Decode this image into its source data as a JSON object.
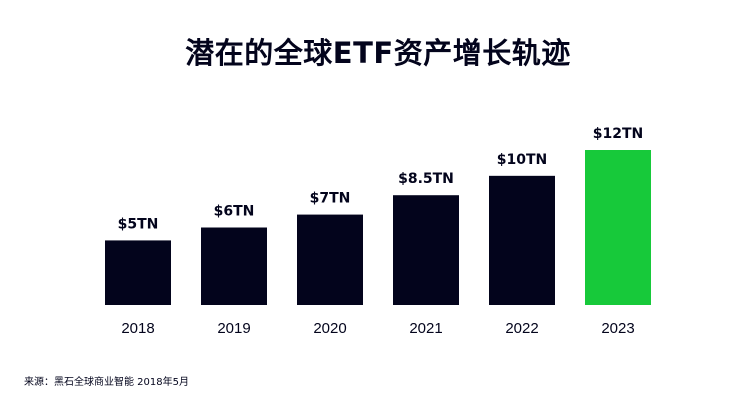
{
  "chart_data": {
    "type": "bar",
    "title": "潜在的全球ETF资产增长轨迹",
    "categories": [
      "2018",
      "2019",
      "2020",
      "2021",
      "2022",
      "2023"
    ],
    "values": [
      5,
      6,
      7,
      8.5,
      10,
      12
    ],
    "value_labels": [
      "$5TN",
      "$6TN",
      "$7TN",
      "$8.5TN",
      "$10TN",
      "$12TN"
    ],
    "colors": [
      "#03041c",
      "#03041c",
      "#03041c",
      "#03041c",
      "#03041c",
      "#17c93a"
    ],
    "xlabel": "",
    "ylabel": "",
    "ylim": [
      0,
      12
    ],
    "grid": false,
    "source": "来源：黑石全球商业智能 2018年5月"
  }
}
